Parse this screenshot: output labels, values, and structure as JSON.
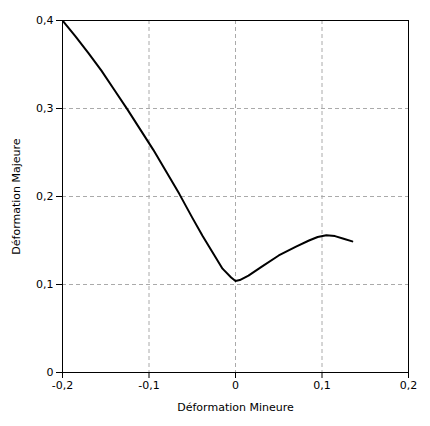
{
  "chart_data": {
    "type": "line",
    "xlabel": "Déformation Mineure",
    "ylabel": "Déformation Majeure",
    "x": [
      -0.2,
      -0.185,
      -0.17,
      -0.155,
      -0.14,
      -0.125,
      -0.11,
      -0.095,
      -0.08,
      -0.065,
      -0.05,
      -0.038,
      -0.025,
      -0.015,
      -0.005,
      0.0,
      0.005,
      0.015,
      0.03,
      0.05,
      0.07,
      0.085,
      0.095,
      0.105,
      0.115,
      0.125,
      0.135
    ],
    "values": [
      0.4,
      0.382,
      0.363,
      0.343,
      0.321,
      0.299,
      0.276,
      0.253,
      0.228,
      0.203,
      0.176,
      0.155,
      0.134,
      0.118,
      0.108,
      0.104,
      0.105,
      0.11,
      0.12,
      0.133,
      0.143,
      0.15,
      0.154,
      0.156,
      0.155,
      0.152,
      0.149
    ],
    "color": "#000000",
    "xlim": [
      -0.2,
      0.2
    ],
    "ylim": [
      0,
      0.4
    ],
    "xticks": [
      {
        "value": -0.2,
        "label": "-0,2"
      },
      {
        "value": -0.1,
        "label": "-0,1"
      },
      0,
      {
        "value": 0.1,
        "label": "0,1"
      },
      {
        "value": 0.2,
        "label": "0,2"
      }
    ],
    "yticks": [
      0,
      {
        "value": 0.1,
        "label": "0,1"
      },
      {
        "value": 0.2,
        "label": "0,2"
      },
      {
        "value": 0.3,
        "label": "0,3"
      },
      {
        "value": 0.4,
        "label": "0,4"
      }
    ],
    "grid": true
  }
}
